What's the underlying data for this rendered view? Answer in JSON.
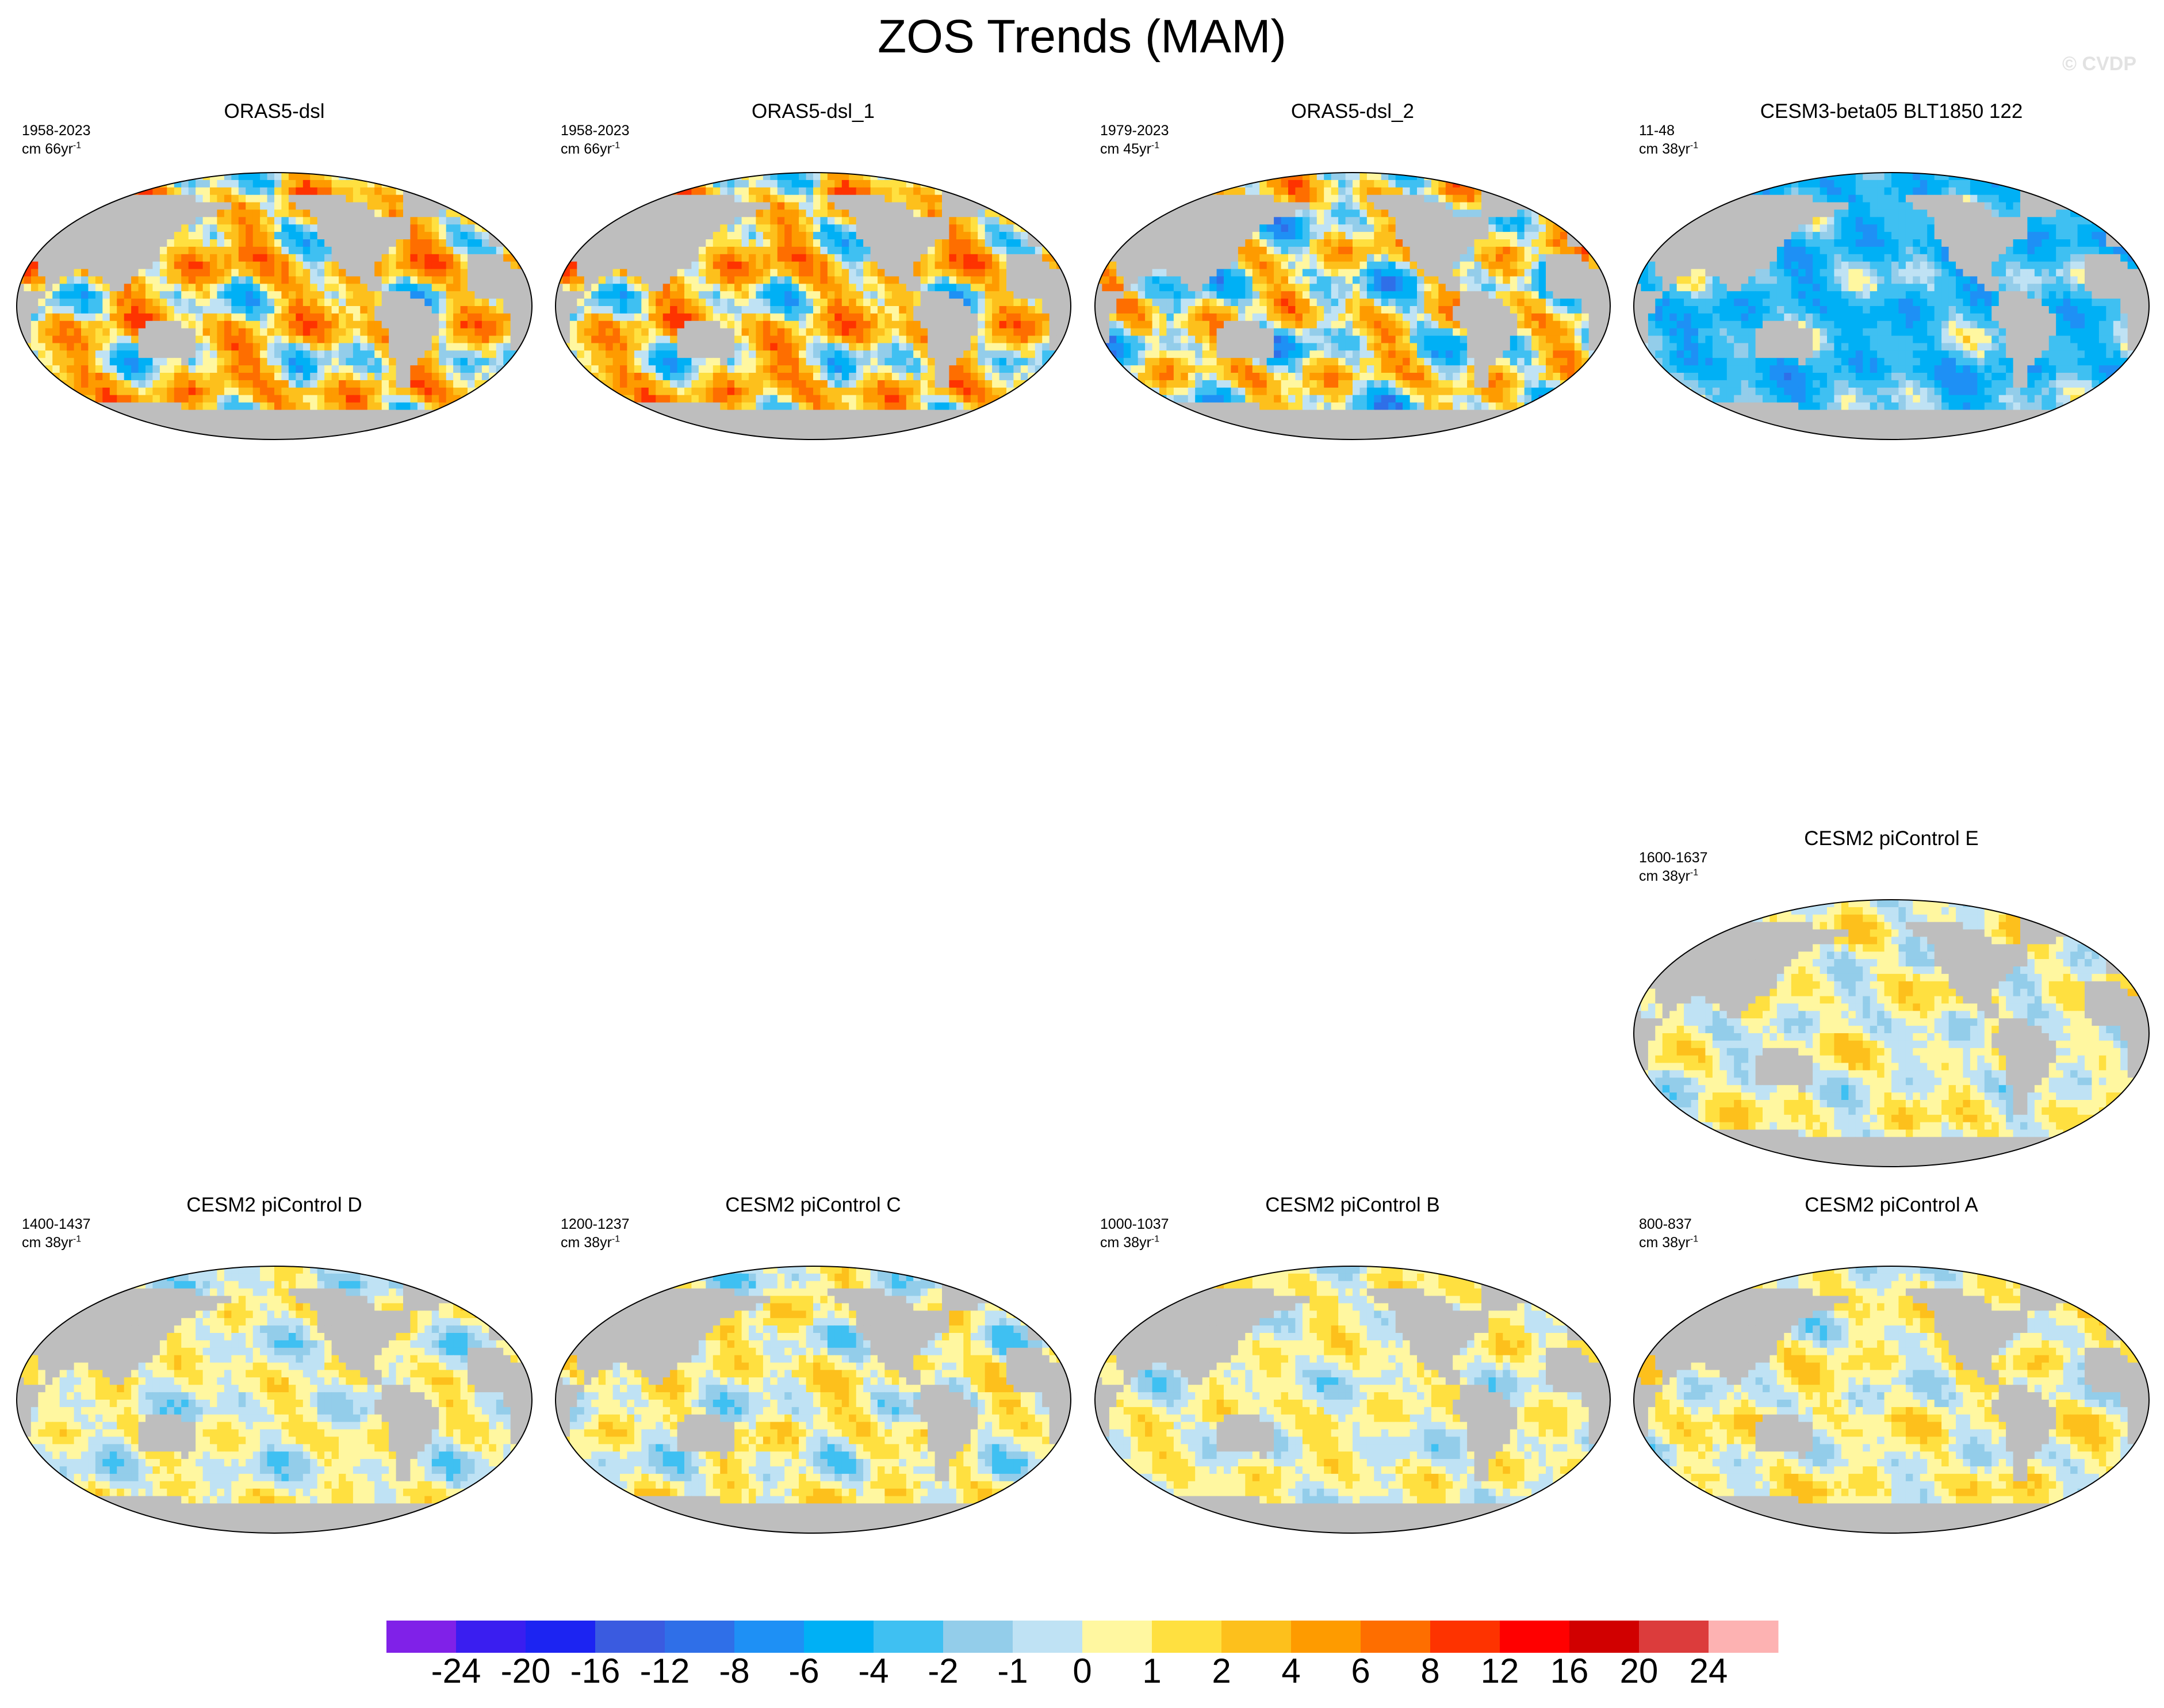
{
  "title": "ZOS Trends (MAM)",
  "watermark": "© CVDP",
  "colors": {
    "land": "#bebebe",
    "background": "#ffffff"
  },
  "chart_data": {
    "type": "heatmap",
    "title": "ZOS Trends (MAM)",
    "projection": "robinson-global-map",
    "colorbar": {
      "orientation": "horizontal",
      "labels": [
        "-24",
        "-20",
        "-16",
        "-12",
        "-8",
        "-6",
        "-4",
        "-2",
        "-1",
        "0",
        "1",
        "2",
        "4",
        "6",
        "8",
        "12",
        "16",
        "20",
        "24"
      ],
      "levels": [
        -24,
        -20,
        -16,
        -12,
        -8,
        -6,
        -4,
        -2,
        -1,
        0,
        1,
        2,
        4,
        6,
        8,
        12,
        16,
        20,
        24
      ],
      "colors": [
        "#8021e8",
        "#3a1ef0",
        "#1c24f2",
        "#3a5be0",
        "#2f6fe8",
        "#1e90f5",
        "#00b0f5",
        "#3fc0f2",
        "#93cdea",
        "#bfe2f4",
        "#fff7a0",
        "#ffe040",
        "#fdc01c",
        "#fe9b00",
        "#fe6e00",
        "#fe3300",
        "#ff0000",
        "#d10000",
        "#dc3c3c",
        "#fdb2b2"
      ]
    },
    "panels": [
      {
        "id": "orasdsl",
        "title": "ORAS5-dsl",
        "years": "1958-2023",
        "units": "cm 66yr",
        "unit_exp": "-1",
        "trend_bias": 2.0,
        "trend_amplitude": 9,
        "seed": 3
      },
      {
        "id": "orasdsl1",
        "title": "ORAS5-dsl_1",
        "years": "1958-2023",
        "units": "cm 66yr",
        "unit_exp": "-1",
        "trend_bias": 2.0,
        "trend_amplitude": 9,
        "seed": 3
      },
      {
        "id": "orasdsl2",
        "title": "ORAS5-dsl_2",
        "years": "1979-2023",
        "units": "cm 45yr",
        "unit_exp": "-1",
        "trend_bias": 0.5,
        "trend_amplitude": 9,
        "seed": 11
      },
      {
        "id": "cesm3",
        "title": "CESM3-beta05 BLT1850 122",
        "years": "11-48",
        "units": "cm 38yr",
        "unit_exp": "-1",
        "trend_bias": -3.5,
        "trend_amplitude": 5,
        "seed": 17
      },
      {
        "id": "pice",
        "title": "CESM2 piControl E",
        "years": "1600-1637",
        "units": "cm 38yr",
        "unit_exp": "-1",
        "trend_bias": 0.3,
        "trend_amplitude": 2.6,
        "seed": 23
      },
      {
        "id": "picd",
        "title": "CESM2 piControl D",
        "years": "1400-1437",
        "units": "cm 38yr",
        "unit_exp": "-1",
        "trend_bias": 0.2,
        "trend_amplitude": 2.6,
        "seed": 29
      },
      {
        "id": "picc",
        "title": "CESM2 piControl C",
        "years": "1200-1237",
        "units": "cm 38yr",
        "unit_exp": "-1",
        "trend_bias": 0.4,
        "trend_amplitude": 3.2,
        "seed": 31
      },
      {
        "id": "picb",
        "title": "CESM2 piControl B",
        "years": "1000-1037",
        "units": "cm 38yr",
        "unit_exp": "-1",
        "trend_bias": 0.3,
        "trend_amplitude": 2.4,
        "seed": 37
      },
      {
        "id": "pica",
        "title": "CESM2 piControl A",
        "years": "800-837",
        "units": "cm 38yr",
        "unit_exp": "-1",
        "trend_bias": 0.4,
        "trend_amplitude": 2.6,
        "seed": 41
      }
    ]
  }
}
